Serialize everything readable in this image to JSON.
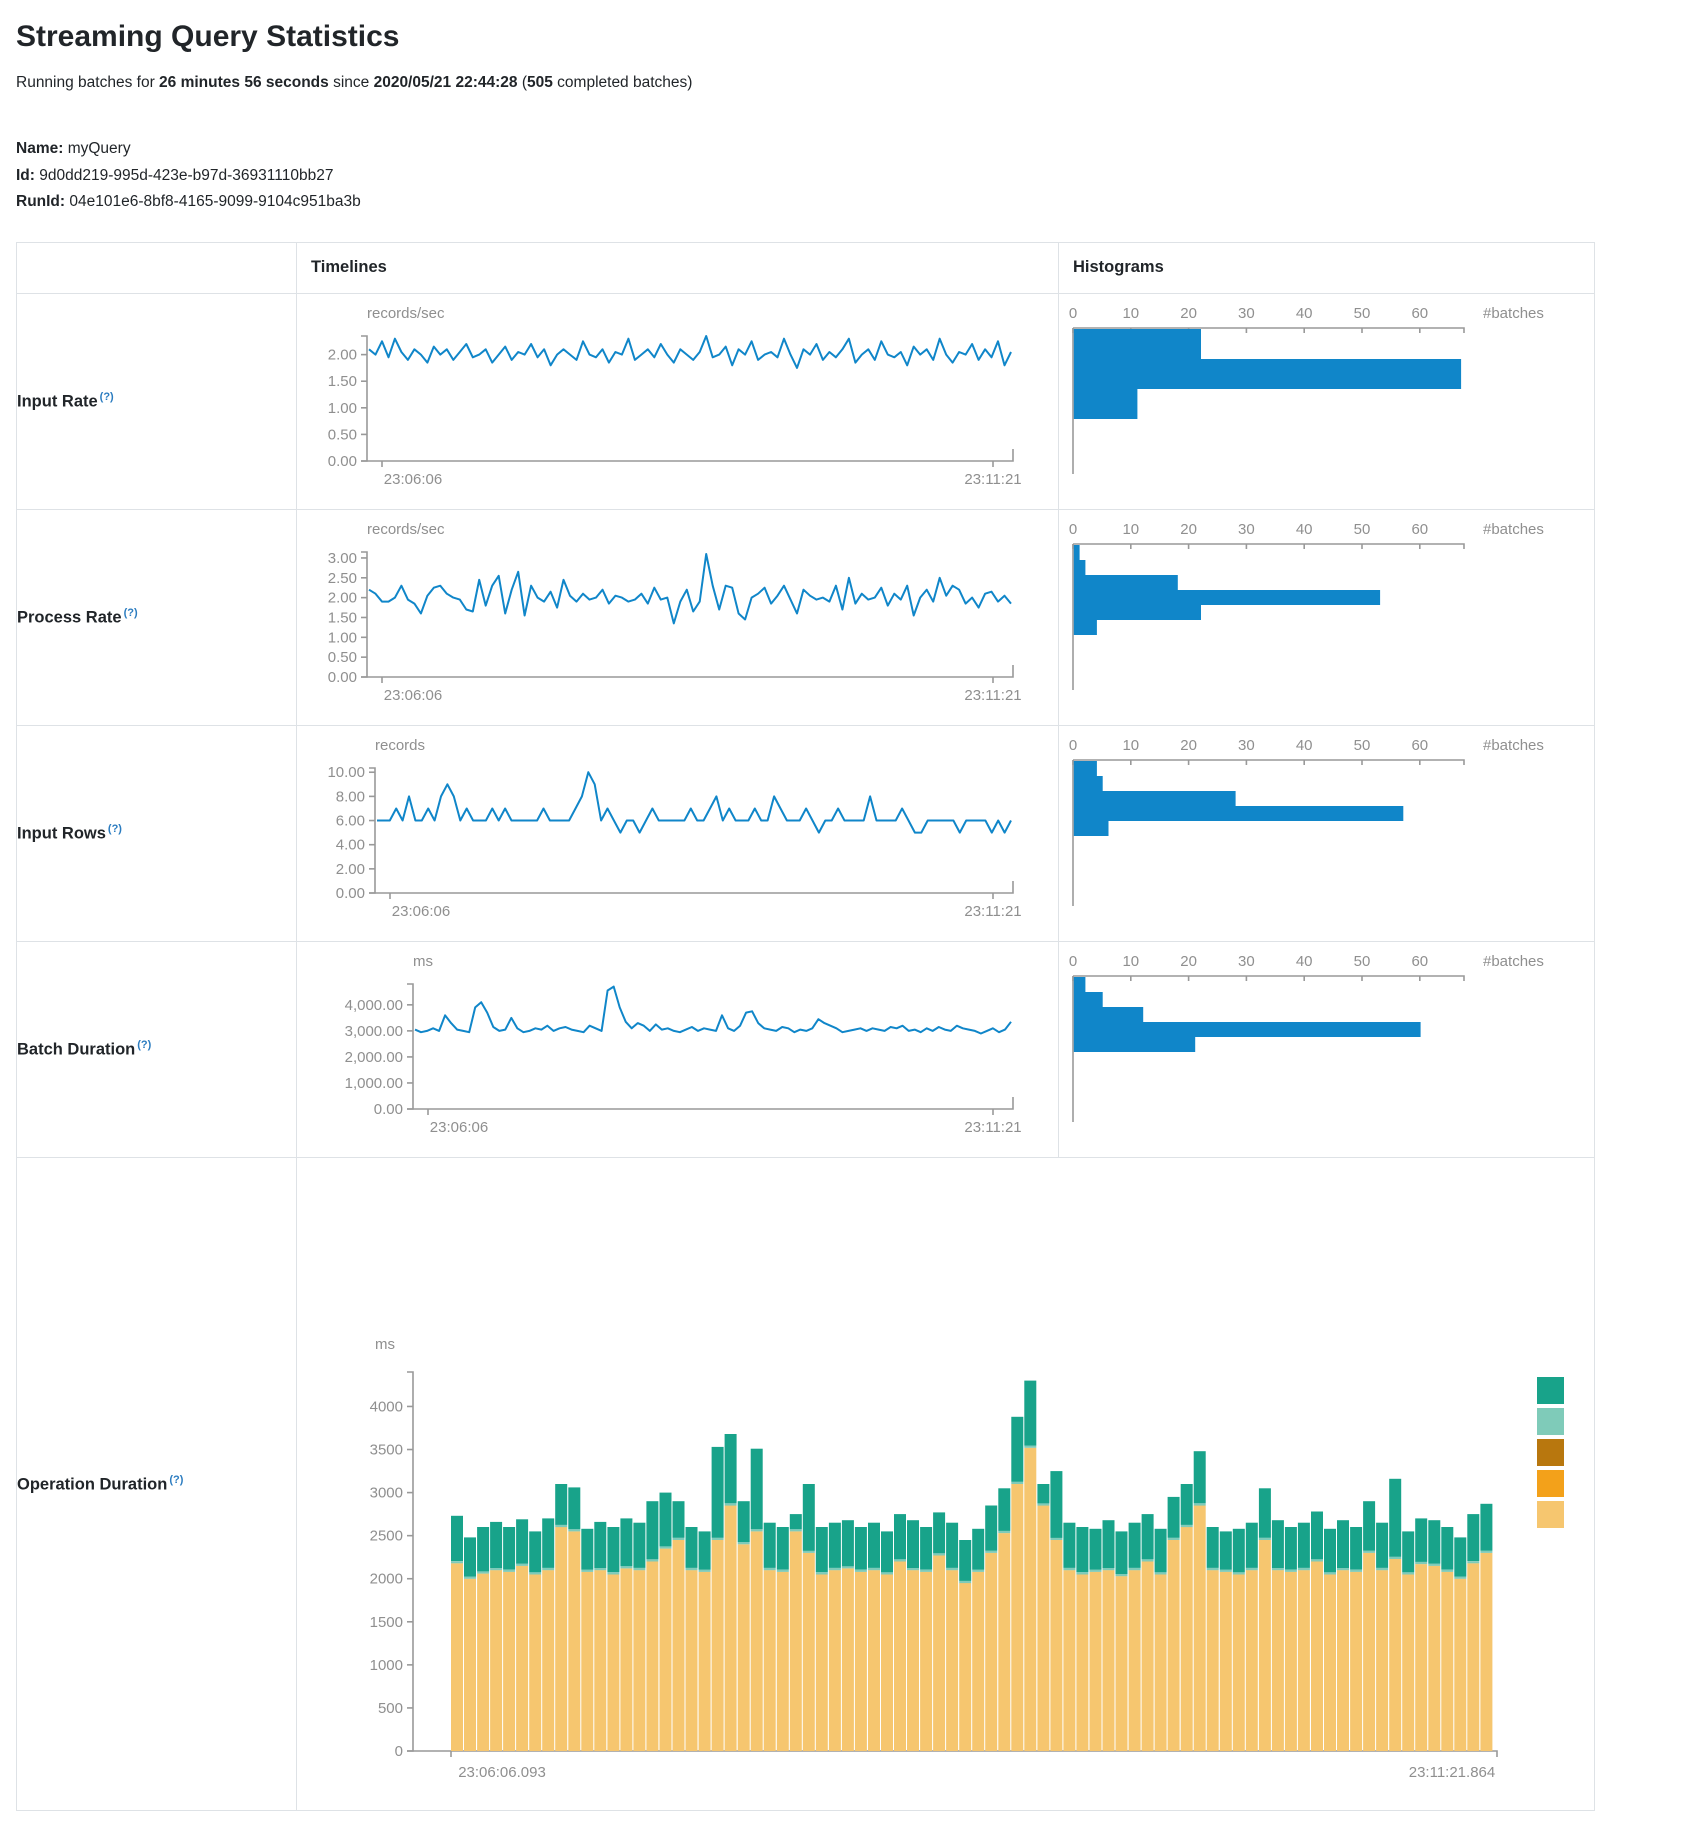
{
  "page": {
    "title": "Streaming Query Statistics",
    "subtitle": {
      "prefix": "Running batches for ",
      "duration": "26 minutes 56 seconds",
      "mid": " since ",
      "since": "2020/05/21 22:44:28",
      "paren": " (",
      "batches": "505",
      "suffix": " completed batches)"
    },
    "meta": {
      "name_label": "Name:",
      "name": "myQuery",
      "id_label": "Id:",
      "id": "9d0dd219-995d-423e-b97d-36931110bb27",
      "runid_label": "RunId:",
      "runid": "04e101e6-8bf8-4165-9099-9104c951ba3b"
    }
  },
  "table": {
    "headers": {
      "timelines": "Timelines",
      "histograms": "Histograms"
    }
  },
  "colors": {
    "blue": "#1086c9",
    "axis": "#999999",
    "tick_text": "#8f8f8f"
  },
  "rows": [
    {
      "label": "Input Rate",
      "help": "(?)",
      "timeline": {
        "title": "records/sec",
        "x_start": "23:06:06",
        "x_end": "23:11:21",
        "y_max": 2.35,
        "y_ticks": [
          {
            "v": 2,
            "t": "2.00"
          },
          {
            "v": 1.5,
            "t": "1.50"
          },
          {
            "v": 1,
            "t": "1.00"
          },
          {
            "v": 0.5,
            "t": "0.50"
          },
          {
            "v": 0,
            "t": "0.00"
          }
        ],
        "values": [
          2.1,
          2.0,
          2.25,
          1.95,
          2.3,
          2.05,
          1.9,
          2.1,
          2.0,
          1.85,
          2.15,
          2.0,
          2.1,
          1.9,
          2.05,
          2.2,
          1.95,
          2.0,
          2.1,
          1.85,
          2.0,
          2.15,
          1.9,
          2.05,
          2.0,
          2.2,
          1.95,
          2.1,
          1.8,
          2.0,
          2.1,
          2.0,
          1.9,
          2.25,
          2.0,
          1.95,
          2.1,
          1.85,
          2.05,
          2.0,
          2.3,
          1.9,
          2.0,
          2.1,
          1.95,
          2.2,
          2.0,
          1.85,
          2.1,
          2.0,
          1.9,
          2.05,
          2.35,
          1.95,
          2.0,
          2.15,
          1.8,
          2.1,
          2.0,
          2.25,
          1.9,
          2.0,
          2.05,
          1.95,
          2.3,
          2.0,
          1.75,
          2.1,
          2.0,
          2.2,
          1.9,
          2.05,
          1.95,
          2.1,
          2.3,
          1.85,
          2.0,
          2.1,
          1.9,
          2.25,
          2.0,
          1.95,
          2.05,
          1.8,
          2.15,
          2.0,
          2.1,
          1.9,
          2.3,
          2.0,
          1.85,
          2.05,
          2.0,
          2.2,
          1.9,
          2.1,
          1.95,
          2.25,
          1.8,
          2.05
        ]
      },
      "histogram": {
        "ticks": [
          "0",
          "10",
          "20",
          "30",
          "40",
          "50",
          "60"
        ],
        "unit": "#batches",
        "bins": [
          22,
          67,
          11
        ]
      }
    },
    {
      "label": "Process Rate",
      "help": "(?)",
      "timeline": {
        "title": "records/sec",
        "x_start": "23:06:06",
        "x_end": "23:11:21",
        "y_max": 3.15,
        "y_ticks": [
          {
            "v": 3,
            "t": "3.00"
          },
          {
            "v": 2.5,
            "t": "2.50"
          },
          {
            "v": 2,
            "t": "2.00"
          },
          {
            "v": 1.5,
            "t": "1.50"
          },
          {
            "v": 1,
            "t": "1.00"
          },
          {
            "v": 0.5,
            "t": "0.50"
          },
          {
            "v": 0,
            "t": "0.00"
          }
        ],
        "values": [
          2.2,
          2.1,
          1.9,
          1.9,
          2.0,
          2.3,
          1.95,
          1.85,
          1.6,
          2.05,
          2.25,
          2.3,
          2.1,
          2.0,
          1.95,
          1.7,
          1.65,
          2.45,
          1.8,
          2.3,
          2.55,
          1.6,
          2.2,
          2.65,
          1.55,
          2.3,
          2.0,
          1.9,
          2.15,
          1.75,
          2.45,
          2.05,
          1.9,
          2.1,
          1.95,
          2.0,
          2.2,
          1.85,
          2.05,
          2.0,
          1.9,
          1.95,
          2.1,
          1.85,
          2.25,
          1.95,
          2.0,
          1.35,
          1.9,
          2.2,
          1.65,
          1.9,
          3.1,
          2.3,
          1.7,
          2.3,
          2.25,
          1.6,
          1.45,
          2.0,
          2.1,
          2.25,
          1.85,
          2.05,
          2.3,
          1.95,
          1.6,
          2.2,
          2.05,
          1.95,
          2.0,
          1.9,
          2.3,
          1.7,
          2.5,
          1.85,
          2.1,
          1.95,
          2.0,
          2.25,
          1.8,
          2.1,
          1.95,
          2.3,
          1.55,
          2.0,
          2.2,
          1.9,
          2.5,
          2.05,
          2.3,
          2.2,
          1.85,
          2.0,
          1.75,
          2.1,
          2.15,
          1.9,
          2.05,
          1.85
        ]
      },
      "histogram": {
        "ticks": [
          "0",
          "10",
          "20",
          "30",
          "40",
          "50",
          "60"
        ],
        "unit": "#batches",
        "bins": [
          1,
          2,
          18,
          53,
          22,
          4
        ]
      }
    },
    {
      "label": "Input Rows",
      "help": "(?)",
      "timeline": {
        "title": "records",
        "x_start": "23:06:06",
        "x_end": "23:11:21",
        "y_max": 10.35,
        "y_ticks": [
          {
            "v": 10,
            "t": "10.00"
          },
          {
            "v": 8,
            "t": "8.00"
          },
          {
            "v": 6,
            "t": "6.00"
          },
          {
            "v": 4,
            "t": "4.00"
          },
          {
            "v": 2,
            "t": "2.00"
          },
          {
            "v": 0,
            "t": "0.00"
          }
        ],
        "values": [
          6,
          6,
          6,
          7,
          6,
          8,
          6,
          6,
          7,
          6,
          8,
          9,
          8,
          6,
          7,
          6,
          6,
          6,
          7,
          6,
          7,
          6,
          6,
          6,
          6,
          6,
          7,
          6,
          6,
          6,
          6,
          7,
          8,
          10,
          9,
          6,
          7,
          6,
          5,
          6,
          6,
          5,
          6,
          7,
          6,
          6,
          6,
          6,
          6,
          7,
          6,
          6,
          7,
          8,
          6,
          7,
          6,
          6,
          6,
          7,
          6,
          6,
          8,
          7,
          6,
          6,
          6,
          7,
          6,
          5,
          6,
          6,
          7,
          6,
          6,
          6,
          6,
          8,
          6,
          6,
          6,
          6,
          7,
          6,
          5,
          5,
          6,
          6,
          6,
          6,
          6,
          5,
          6,
          6,
          6,
          6,
          5,
          6,
          5,
          6
        ]
      },
      "histogram": {
        "ticks": [
          "0",
          "10",
          "20",
          "30",
          "40",
          "50",
          "60"
        ],
        "unit": "#batches",
        "bins": [
          4,
          5,
          28,
          57,
          6
        ]
      }
    },
    {
      "label": "Batch Duration",
      "help": "(?)",
      "timeline": {
        "title": "ms",
        "x_start": "23:06:06",
        "x_end": "23:11:21",
        "y_max": 4800,
        "y_ticks": [
          {
            "v": 4000,
            "t": "4,000.00"
          },
          {
            "v": 3000,
            "t": "3,000.00"
          },
          {
            "v": 2000,
            "t": "2,000.00"
          },
          {
            "v": 1000,
            "t": "1,000.00"
          },
          {
            "v": 0,
            "t": "0.00"
          }
        ],
        "values": [
          3050,
          2950,
          3000,
          3100,
          3000,
          3600,
          3300,
          3050,
          3000,
          2950,
          3900,
          4100,
          3700,
          3150,
          3000,
          3050,
          3500,
          3100,
          2950,
          3000,
          3100,
          3050,
          3200,
          3000,
          3100,
          3150,
          3050,
          3000,
          2950,
          3200,
          3100,
          3000,
          4550,
          4700,
          3900,
          3350,
          3100,
          3300,
          3200,
          3000,
          3250,
          3050,
          3100,
          3000,
          2950,
          3050,
          3150,
          3000,
          3100,
          3050,
          3000,
          3600,
          3100,
          3000,
          3200,
          3700,
          3750,
          3300,
          3100,
          3050,
          3000,
          3150,
          3100,
          2950,
          3050,
          3000,
          3100,
          3450,
          3300,
          3200,
          3100,
          2950,
          3000,
          3050,
          3100,
          3000,
          3100,
          3050,
          3000,
          3150,
          3100,
          3200,
          3000,
          3050,
          2950,
          3100,
          3000,
          3150,
          3050,
          3000,
          3200,
          3100,
          3050,
          3000,
          2900,
          3000,
          3100,
          2950,
          3050,
          3350
        ]
      },
      "histogram": {
        "ticks": [
          "0",
          "10",
          "20",
          "30",
          "40",
          "50",
          "60"
        ],
        "unit": "#batches",
        "bins": [
          2,
          5,
          12,
          60,
          21
        ]
      }
    },
    {
      "label": "Operation Duration",
      "help": "(?)",
      "op_chart": {
        "title": "ms",
        "x_start": "23:06:06.093",
        "x_end": "23:11:21.864",
        "y_max": 4400,
        "y_ticks": [
          {
            "v": 4000,
            "t": "4000"
          },
          {
            "v": 3500,
            "t": "3500"
          },
          {
            "v": 3000,
            "t": "3000"
          },
          {
            "v": 2500,
            "t": "2500"
          },
          {
            "v": 2000,
            "t": "2000"
          },
          {
            "v": 1500,
            "t": "1500"
          },
          {
            "v": 1000,
            "t": "1000"
          },
          {
            "v": 500,
            "t": "500"
          },
          {
            "v": 0,
            "t": "0"
          }
        ],
        "series": [
          {
            "name": "bottom-segment",
            "color": "#f6c66f",
            "values": [
              2180,
              2000,
              2060,
              2100,
              2080,
              2150,
              2050,
              2100,
              2600,
              2550,
              2080,
              2100,
              2050,
              2120,
              2100,
              2200,
              2350,
              2450,
              2100,
              2080,
              2450,
              2850,
              2400,
              2550,
              2100,
              2080,
              2550,
              2300,
              2050,
              2100,
              2120,
              2080,
              2100,
              2050,
              2200,
              2100,
              2080,
              2270,
              2100,
              1950,
              2080,
              2300,
              2530,
              3100,
              3520,
              2850,
              2450,
              2100,
              2050,
              2080,
              2100,
              2030,
              2100,
              2200,
              2050,
              2450,
              2600,
              2850,
              2100,
              2080,
              2050,
              2100,
              2450,
              2100,
              2080,
              2100,
              2200,
              2050,
              2100,
              2080,
              2300,
              2100,
              2230,
              2050,
              2170,
              2150,
              2080,
              2000,
              2180,
              2300
            ]
          },
          {
            "name": "middle-segment",
            "color": "#7fcbb9",
            "values": [
              25,
              25,
              25,
              25,
              25,
              25,
              25,
              25,
              25,
              25,
              25,
              25,
              25,
              25,
              25,
              25,
              25,
              25,
              25,
              25,
              25,
              25,
              25,
              25,
              25,
              25,
              25,
              25,
              25,
              25,
              25,
              25,
              25,
              25,
              25,
              25,
              25,
              25,
              25,
              25,
              25,
              25,
              25,
              25,
              25,
              25,
              25,
              25,
              25,
              25,
              25,
              25,
              25,
              25,
              25,
              25,
              25,
              25,
              25,
              25,
              25,
              25,
              25,
              25,
              25,
              25,
              25,
              25,
              25,
              25,
              25,
              25,
              25,
              25,
              25,
              25,
              25,
              25,
              25,
              25
            ]
          },
          {
            "name": "top-segment",
            "color": "#18a38a",
            "values": [
              525,
              455,
              515,
              535,
              495,
              515,
              475,
              575,
              475,
              485,
              475,
              535,
              525,
              555,
              525,
              675,
              625,
              425,
              475,
              445,
              1055,
              805,
              475,
              935,
              525,
              495,
              175,
              775,
              525,
              525,
              535,
              495,
              525,
              475,
              525,
              555,
              495,
              475,
              525,
              475,
              475,
              525,
              495,
              755,
              755,
              225,
              775,
              525,
              525,
              475,
              555,
              495,
              525,
              525,
              505,
              475,
              475,
              605,
              475,
              445,
              505,
              525,
              575,
              555,
              495,
              525,
              555,
              505,
              555,
              495,
              575,
              525,
              905,
              475,
              505,
              505,
              495,
              455,
              545,
              545
            ]
          }
        ],
        "legend_colors": [
          "#18a38a",
          "#7fcbb9",
          "#b8770e",
          "#f3a11a",
          "#f6c66f"
        ]
      }
    }
  ]
}
